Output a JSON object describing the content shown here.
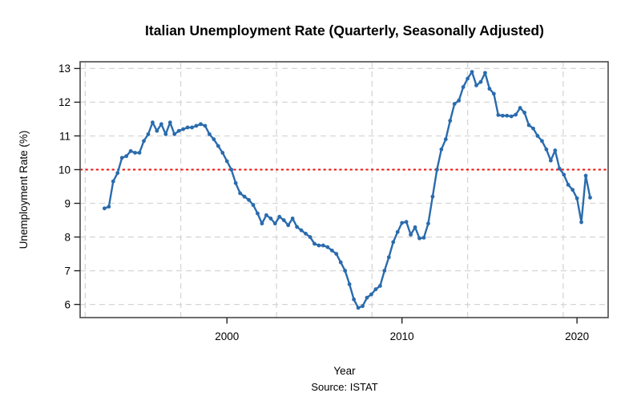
{
  "title": "Italian Unemployment Rate (Quarterly, Seasonally Adjusted)",
  "chart_data": {
    "type": "line",
    "title": "Italian Unemployment Rate (Quarterly, Seasonally Adjusted)",
    "xlabel": "Year",
    "ylabel": "Unemployment Rate (%)",
    "source_note": "Source: ISTAT",
    "legend": "none",
    "grid": true,
    "x_ticks": [
      2000,
      2010,
      2020
    ],
    "y_ticks": [
      6,
      7,
      8,
      9,
      10,
      11,
      12,
      13
    ],
    "xlim": [
      1991.61,
      2021.78
    ],
    "ylim": [
      5.61,
      13.2
    ],
    "x_gridlines": [
      1991.9,
      1997.36,
      2002.83,
      2008.29,
      2013.75,
      2019.21
    ],
    "reference_line": {
      "value": 10,
      "color": "#ee1111",
      "style": "dotted",
      "label": "10% reference"
    },
    "line_color": "#2a6bad",
    "marker": "filled-circle",
    "grid_color": "#d6d6d6",
    "box_color": "#4a4a4a",
    "series": [
      {
        "name": "Unemployment rate (%)",
        "start_year": 1993,
        "start_quarter": 1,
        "frequency": "quarterly",
        "values": [
          8.85,
          8.9,
          9.65,
          9.9,
          10.35,
          10.4,
          10.55,
          10.5,
          10.5,
          10.85,
          11.05,
          11.4,
          11.15,
          11.35,
          11.05,
          11.4,
          11.05,
          11.15,
          11.2,
          11.25,
          11.25,
          11.3,
          11.35,
          11.3,
          11.05,
          10.9,
          10.7,
          10.5,
          10.25,
          10.0,
          9.6,
          9.3,
          9.2,
          9.1,
          8.95,
          8.7,
          8.4,
          8.65,
          8.55,
          8.4,
          8.6,
          8.5,
          8.35,
          8.55,
          8.3,
          8.2,
          8.1,
          8.0,
          7.8,
          7.75,
          7.75,
          7.7,
          7.6,
          7.5,
          7.25,
          7.0,
          6.6,
          6.15,
          5.9,
          5.95,
          6.2,
          6.3,
          6.45,
          6.55,
          7.0,
          7.4,
          7.85,
          8.15,
          8.42,
          8.45,
          8.07,
          8.29,
          7.96,
          7.98,
          8.4,
          9.2,
          10.0,
          10.6,
          10.9,
          11.45,
          11.95,
          12.05,
          12.45,
          12.7,
          12.9,
          12.5,
          12.6,
          12.87,
          12.4,
          12.25,
          11.62,
          11.6,
          11.6,
          11.58,
          11.63,
          11.83,
          11.69,
          11.32,
          11.22,
          11.0,
          10.85,
          10.6,
          10.27,
          10.57,
          10.03,
          9.85,
          9.55,
          9.4,
          9.15,
          8.44,
          9.82,
          9.17
        ]
      }
    ]
  }
}
